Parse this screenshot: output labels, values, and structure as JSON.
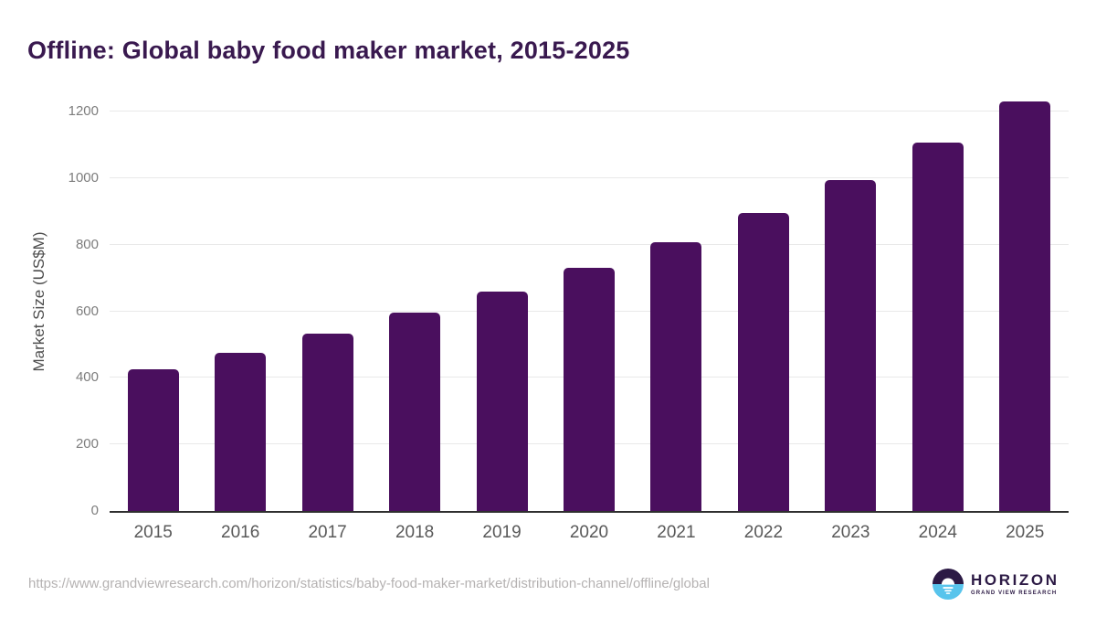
{
  "title": "Offline: Global baby food maker market, 2015-2025",
  "source_url": "https://www.grandviewresearch.com/horizon/statistics/baby-food-maker-market/distribution-channel/offline/global",
  "logo": {
    "brand": "HORIZON",
    "sub_brand": "GRAND VIEW RESEARCH",
    "icon": "horizon-sun-over-water-icon",
    "icon_top_color": "#2c1a45",
    "icon_bottom_color": "#58c4ec"
  },
  "chart_data": {
    "type": "bar",
    "title": "Offline: Global baby food maker market, 2015-2025",
    "categories": [
      "2015",
      "2016",
      "2017",
      "2018",
      "2019",
      "2020",
      "2021",
      "2022",
      "2023",
      "2024",
      "2025"
    ],
    "values": [
      427,
      476,
      533,
      595,
      659,
      730,
      807,
      895,
      993,
      1107,
      1230
    ],
    "xlabel": "",
    "ylabel": "Market Size (US$M)",
    "yticks": [
      0,
      200,
      400,
      600,
      800,
      1000,
      1200
    ],
    "ylim": [
      0,
      1200
    ],
    "grid": true,
    "legend": "none",
    "bar_color": "#4a0f5e",
    "title_color": "#39194f",
    "axis_label_color": "#4d4d4d",
    "tick_label_color": "#7d7d7d"
  }
}
